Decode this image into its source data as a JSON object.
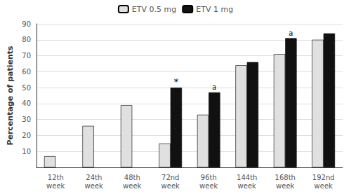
{
  "chart_data": {
    "type": "bar",
    "categories": [
      "12th\nweek",
      "24th\nweek",
      "48th\nweek",
      "72nd\nweek",
      "96th\nweek",
      "144th\nweek",
      "168th\nweek",
      "192nd\nweek"
    ],
    "series": [
      {
        "name": "ETV 0.5 mg",
        "color": "#e0e0e0",
        "values": [
          7,
          26,
          39,
          15,
          33,
          64,
          71,
          80
        ]
      },
      {
        "name": "ETV 1 mg",
        "color": "#111111",
        "values": [
          null,
          null,
          null,
          50,
          47,
          66,
          81,
          84
        ]
      }
    ],
    "ylabel": "Percentage of patients",
    "ylim": [
      0,
      90
    ],
    "yticks": [
      10,
      20,
      30,
      40,
      50,
      60,
      70,
      80,
      90
    ],
    "grid": true,
    "legend": "top",
    "annotations": [
      {
        "text": "*",
        "category": "72nd\nweek",
        "series": "ETV 1 mg"
      },
      {
        "text": "a",
        "category": "96th\nweek",
        "series": "ETV 1 mg"
      },
      {
        "text": "a",
        "category": "168th\nweek",
        "series": "ETV 1 mg"
      }
    ]
  }
}
